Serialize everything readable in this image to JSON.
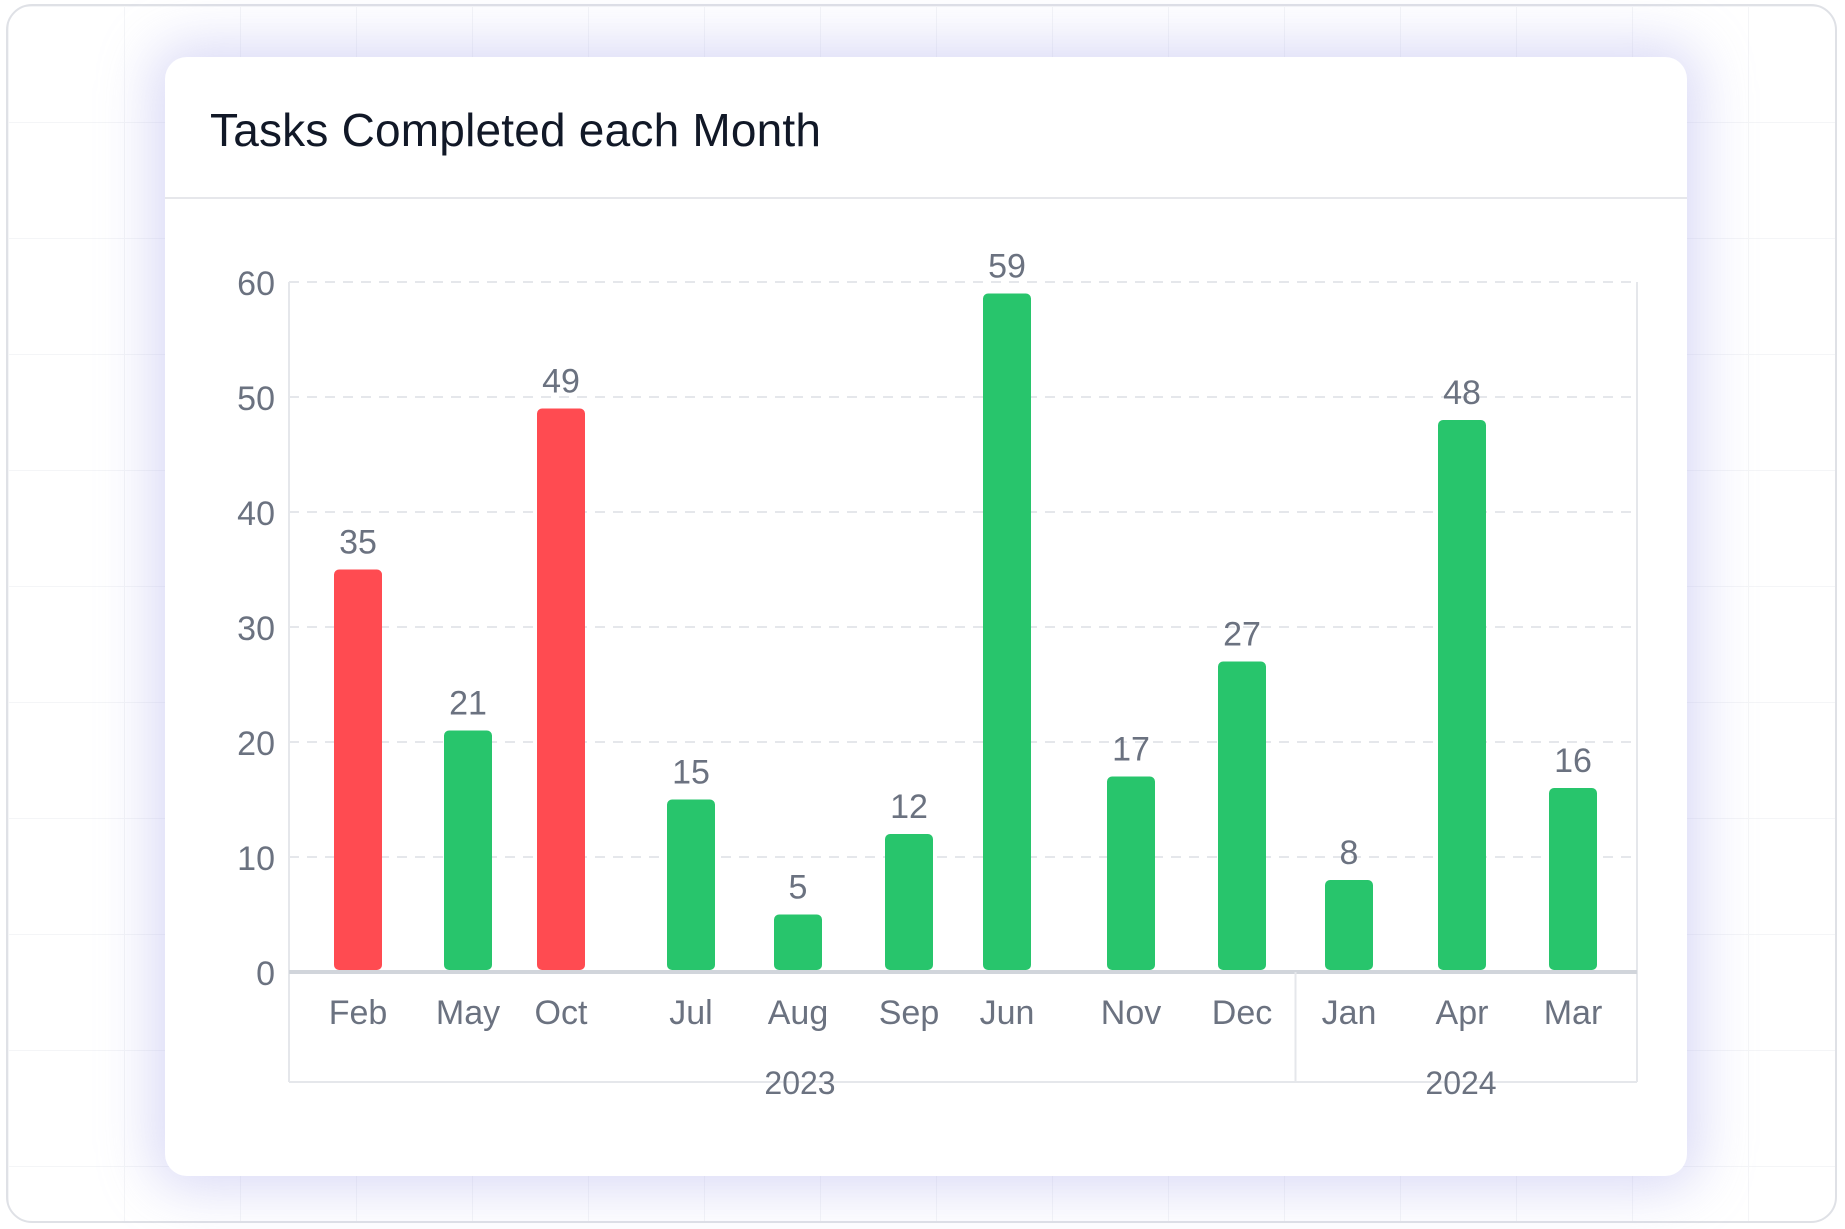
{
  "card": {
    "title": "Tasks Completed each Month"
  },
  "chart_data": {
    "type": "bar",
    "title": "Tasks Completed each Month",
    "xlabel": "",
    "ylabel": "",
    "ylim": [
      0,
      60
    ],
    "yticks": [
      0,
      10,
      20,
      30,
      40,
      50,
      60
    ],
    "grid": true,
    "categories": [
      "Feb",
      "May",
      "Oct",
      "Jul",
      "Aug",
      "Sep",
      "Jun",
      "Nov",
      "Dec",
      "Jan",
      "Apr",
      "Mar"
    ],
    "values": [
      35,
      21,
      49,
      15,
      5,
      12,
      59,
      17,
      27,
      8,
      48,
      16
    ],
    "value_labels": [
      "35",
      "21",
      "49",
      "15",
      "5",
      "12",
      "59",
      "17",
      "27",
      "8",
      "48",
      "16"
    ],
    "bar_colors": [
      "#ff4b51",
      "#28c56c",
      "#ff4b51",
      "#28c56c",
      "#28c56c",
      "#28c56c",
      "#28c56c",
      "#28c56c",
      "#28c56c",
      "#28c56c",
      "#28c56c",
      "#28c56c"
    ],
    "groups": [
      {
        "label": "2023",
        "start": 0,
        "end": 8
      },
      {
        "label": "2024",
        "start": 9,
        "end": 11
      }
    ],
    "colors": {
      "negative": "#ff4b51",
      "positive": "#28c56c",
      "tick_text": "#6b7280",
      "grid": "#e5e7eb",
      "axis": "#d1d5db"
    }
  }
}
